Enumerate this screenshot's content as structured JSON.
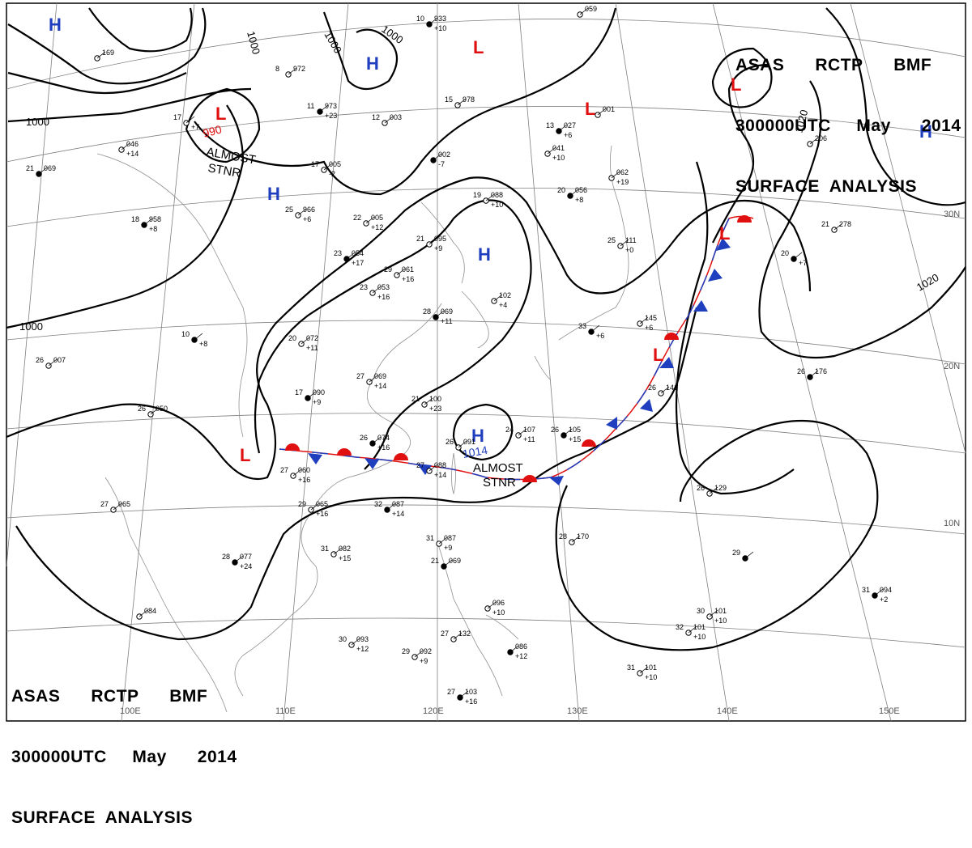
{
  "header": {
    "line1_parts": [
      "ASAS",
      "RCTP",
      "BMF"
    ],
    "line2_parts": [
      "300000UTC",
      "May",
      "2014"
    ],
    "line3": "SURFACE  ANALYSIS"
  },
  "footer": {
    "line1_parts": [
      "ASAS",
      "RCTP",
      "BMF"
    ],
    "line2_parts": [
      "300000UTC",
      "May",
      "2014"
    ],
    "line3": "SURFACE  ANALYSIS"
  },
  "grid": {
    "longitude_labels": [
      "100E",
      "110E",
      "120E",
      "130E",
      "140E",
      "150E"
    ],
    "latitude_labels": [
      "30N",
      "20N",
      "10N"
    ]
  },
  "isobar_labels": [
    "1000",
    "1000",
    "1000",
    "1000",
    "1000",
    "1020",
    "1020"
  ],
  "pressure_centers": [
    {
      "type": "H",
      "color": "#1f3fbf",
      "value": ""
    },
    {
      "type": "H",
      "color": "#1f3fbf",
      "value": ""
    },
    {
      "type": "H",
      "color": "#1f3fbf",
      "value": ""
    },
    {
      "type": "H",
      "color": "#1f3fbf",
      "value": ""
    },
    {
      "type": "H",
      "color": "#1f3fbf",
      "value": "1014"
    },
    {
      "type": "H",
      "color": "#1f3fbf",
      "value": ""
    },
    {
      "type": "L",
      "color": "#e01010",
      "value": "990"
    },
    {
      "type": "L",
      "color": "#e01010",
      "value": ""
    },
    {
      "type": "L",
      "color": "#e01010",
      "value": ""
    },
    {
      "type": "L",
      "color": "#e01010",
      "value": ""
    },
    {
      "type": "L",
      "color": "#e01010",
      "value": ""
    },
    {
      "type": "L",
      "color": "#e01010",
      "value": ""
    },
    {
      "type": "L",
      "color": "#e01010",
      "value": ""
    }
  ],
  "annotations": [
    {
      "line1": "ALMOST",
      "line2": "STNR"
    },
    {
      "line1": "ALMOST",
      "line2": "STNR"
    }
  ],
  "station_plots": [
    {
      "temp": "10",
      "pressure": "933",
      "tendency": "+10"
    },
    {
      "temp": "",
      "pressure": "059",
      "tendency": ""
    },
    {
      "temp": "8",
      "pressure": "972",
      "tendency": ""
    },
    {
      "temp": "11",
      "pressure": "973",
      "tendency": "+23"
    },
    {
      "temp": "15",
      "pressure": "978",
      "tendency": ""
    },
    {
      "temp": "12",
      "pressure": "003",
      "tendency": ""
    },
    {
      "temp": "13",
      "pressure": "027",
      "tendency": "+6"
    },
    {
      "temp": "",
      "pressure": "001",
      "tendency": ""
    },
    {
      "temp": "17",
      "pressure": "005",
      "tendency": "-2"
    },
    {
      "temp": "",
      "pressure": "002",
      "tendency": "-7"
    },
    {
      "temp": "",
      "pressure": "041",
      "tendency": "+10"
    },
    {
      "temp": "",
      "pressure": "062",
      "tendency": "+19"
    },
    {
      "temp": "20",
      "pressure": "056",
      "tendency": "+8"
    },
    {
      "temp": "19",
      "pressure": "088",
      "tendency": "+10"
    },
    {
      "temp": "25",
      "pressure": "966",
      "tendency": "+6"
    },
    {
      "temp": "18",
      "pressure": "958",
      "tendency": "+8"
    },
    {
      "temp": "22",
      "pressure": "005",
      "tendency": "+12"
    },
    {
      "temp": "21",
      "pressure": "095",
      "tendency": "+9"
    },
    {
      "temp": "23",
      "pressure": "054",
      "tendency": "+17"
    },
    {
      "temp": "29",
      "pressure": "061",
      "tendency": "+16"
    },
    {
      "temp": "23",
      "pressure": "053",
      "tendency": "+16"
    },
    {
      "temp": "28",
      "pressure": "069",
      "tendency": "+11"
    },
    {
      "temp": "",
      "pressure": "102",
      "tendency": "+4"
    },
    {
      "temp": "20",
      "pressure": "072",
      "tendency": "+11"
    },
    {
      "temp": "10",
      "pressure": "",
      "tendency": "+8"
    },
    {
      "temp": "26",
      "pressure": "007",
      "tendency": ""
    },
    {
      "temp": "27",
      "pressure": "069",
      "tendency": "+14"
    },
    {
      "temp": "17",
      "pressure": "090",
      "tendency": "+9"
    },
    {
      "temp": "21",
      "pressure": "100",
      "tendency": "+23"
    },
    {
      "temp": "26",
      "pressure": "050",
      "tendency": ""
    },
    {
      "temp": "26",
      "pressure": "074",
      "tendency": "+16"
    },
    {
      "temp": "26",
      "pressure": "091",
      "tendency": ""
    },
    {
      "temp": "24",
      "pressure": "107",
      "tendency": "+11"
    },
    {
      "temp": "26",
      "pressure": "105",
      "tendency": "+15"
    },
    {
      "temp": "27",
      "pressure": "060",
      "tendency": "+16"
    },
    {
      "temp": "27",
      "pressure": "088",
      "tendency": "+14"
    },
    {
      "temp": "32",
      "pressure": "087",
      "tendency": "+14"
    },
    {
      "temp": "29",
      "pressure": "065",
      "tendency": "+16"
    },
    {
      "temp": "27",
      "pressure": "065",
      "tendency": ""
    },
    {
      "temp": "28",
      "pressure": "077",
      "tendency": "+24"
    },
    {
      "temp": "31",
      "pressure": "082",
      "tendency": "+15"
    },
    {
      "temp": "31",
      "pressure": "087",
      "tendency": "+9"
    },
    {
      "temp": "21",
      "pressure": "069",
      "tendency": ""
    },
    {
      "temp": "28",
      "pressure": "170",
      "tendency": ""
    },
    {
      "temp": "26",
      "pressure": "129",
      "tendency": ""
    },
    {
      "temp": "26",
      "pressure": "176",
      "tendency": ""
    },
    {
      "temp": "26",
      "pressure": "141",
      "tendency": ""
    },
    {
      "temp": "25",
      "pressure": "111",
      "tendency": "+0"
    },
    {
      "temp": "33",
      "pressure": "",
      "tendency": "+6"
    },
    {
      "temp": "",
      "pressure": "145",
      "tendency": "+6"
    },
    {
      "temp": "21",
      "pressure": "278",
      "tendency": ""
    },
    {
      "temp": "20",
      "pressure": "",
      "tendency": "+7"
    },
    {
      "temp": "",
      "pressure": "206",
      "tendency": ""
    },
    {
      "temp": "30",
      "pressure": "101",
      "tendency": "+10"
    },
    {
      "temp": "31",
      "pressure": "094",
      "tendency": "+2"
    },
    {
      "temp": "32",
      "pressure": "101",
      "tendency": "+10"
    },
    {
      "temp": "31",
      "pressure": "101",
      "tendency": "+10"
    },
    {
      "temp": "29",
      "pressure": "",
      "tendency": ""
    },
    {
      "temp": "30",
      "pressure": "093",
      "tendency": "+12"
    },
    {
      "temp": "29",
      "pressure": "092",
      "tendency": "+9"
    },
    {
      "temp": "27",
      "pressure": "103",
      "tendency": "+16"
    },
    {
      "temp": "27",
      "pressure": "132",
      "tendency": ""
    },
    {
      "temp": "",
      "pressure": "096",
      "tendency": "+10"
    },
    {
      "temp": "",
      "pressure": "086",
      "tendency": "+12"
    },
    {
      "temp": "",
      "pressure": "084",
      "tendency": ""
    },
    {
      "temp": "",
      "pressure": "046",
      "tendency": "+14"
    },
    {
      "temp": "21",
      "pressure": "069",
      "tendency": ""
    },
    {
      "temp": "",
      "pressure": "169",
      "tendency": ""
    },
    {
      "temp": "17",
      "pressure": "",
      "tendency": "+7"
    }
  ],
  "colors": {
    "isobar": "#000000",
    "grid": "#808080",
    "coast": "#909090",
    "high": "#1f3fbf",
    "low": "#e01010",
    "warm_front": "#e01010",
    "cold_front": "#1f3fbf"
  }
}
